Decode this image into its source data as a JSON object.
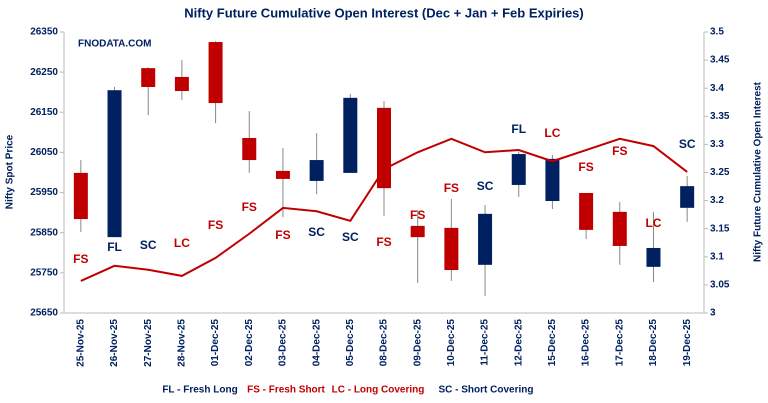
{
  "chart_data": {
    "type": "candlestick",
    "title": "Nifty Future Cumulative Open Interest (Dec + Jan  + Feb Expiries)",
    "watermark": "FNODATA.COM",
    "y_label": "Nifty Spot Price",
    "y2_label": "Nifty Future Cumulative Open Interest",
    "categories": [
      "25-Nov-25",
      "26-Nov-25",
      "27-Nov-25",
      "28-Nov-25",
      "01-Dec-25",
      "02-Dec-25",
      "03-Dec-25",
      "04-Dec-25",
      "05-Dec-25",
      "08-Dec-25",
      "09-Dec-25",
      "10-Dec-25",
      "11-Dec-25",
      "12-Dec-25",
      "15-Dec-25",
      "16-Dec-25",
      "17-Dec-25",
      "18-Dec-25",
      "19-Dec-25"
    ],
    "open": [
      25999,
      25839,
      26260,
      26238,
      26325,
      26086,
      26004,
      25979,
      25999,
      26161,
      25867,
      25862,
      25770,
      25969,
      25929,
      25949,
      25902,
      25765,
      25912
    ],
    "high": [
      26031,
      26213,
      26262,
      26280,
      26327,
      26153,
      26061,
      26098,
      26196,
      26178,
      25907,
      25934,
      25919,
      26051,
      26044,
      25949,
      25927,
      25902,
      25991
    ],
    "low": [
      25852,
      25839,
      26143,
      26181,
      26123,
      25999,
      25889,
      25946,
      25999,
      25892,
      25725,
      25730,
      25692,
      25939,
      25909,
      25834,
      25770,
      25727,
      25877
    ],
    "close": [
      25884,
      26205,
      26213,
      26203,
      26173,
      26031,
      25984,
      26031,
      26186,
      25961,
      25839,
      25757,
      25897,
      26046,
      26034,
      25857,
      25817,
      25812,
      25966
    ],
    "up_color": "#002060",
    "down_color": "#c00000",
    "series": [
      {
        "name": "Nifty Future Cumulative Open Interest",
        "color": "#c00000",
        "axis": "y2",
        "values": [
          3.057,
          3.084,
          3.077,
          3.066,
          3.098,
          3.141,
          3.187,
          3.181,
          3.164,
          3.256,
          3.286,
          3.31,
          3.286,
          3.29,
          3.27,
          3.29,
          3.31,
          3.297,
          3.251
        ]
      }
    ],
    "signals": [
      "FS",
      "FL",
      "SC",
      "LC",
      "FS",
      "FS",
      "FS",
      "SC",
      "SC",
      "FS",
      "FS",
      "FS",
      "SC",
      "FL",
      "LC",
      "FS",
      "FS",
      "LC",
      "SC"
    ],
    "signal_colors": {
      "FS": "#c00000",
      "LC": "#c00000",
      "FL": "#002060",
      "SC": "#002060"
    },
    "legend": [
      {
        "label": "FL - Fresh Long",
        "color": "#002060"
      },
      {
        "label": "FS - Fresh Short",
        "color": "#c00000"
      },
      {
        "label": "LC - Long Covering",
        "color": "#c00000"
      },
      {
        "label": "SC - Short Covering",
        "color": "#002060"
      }
    ],
    "ylim": [
      25650,
      26350
    ],
    "yticks": [
      25650,
      25750,
      25850,
      25950,
      26050,
      26150,
      26250,
      26350
    ],
    "y2lim": [
      3,
      3.5
    ],
    "y2ticks": [
      3,
      3.05,
      3.1,
      3.15,
      3.2,
      3.25,
      3.3,
      3.35,
      3.4,
      3.45,
      3.5
    ]
  }
}
